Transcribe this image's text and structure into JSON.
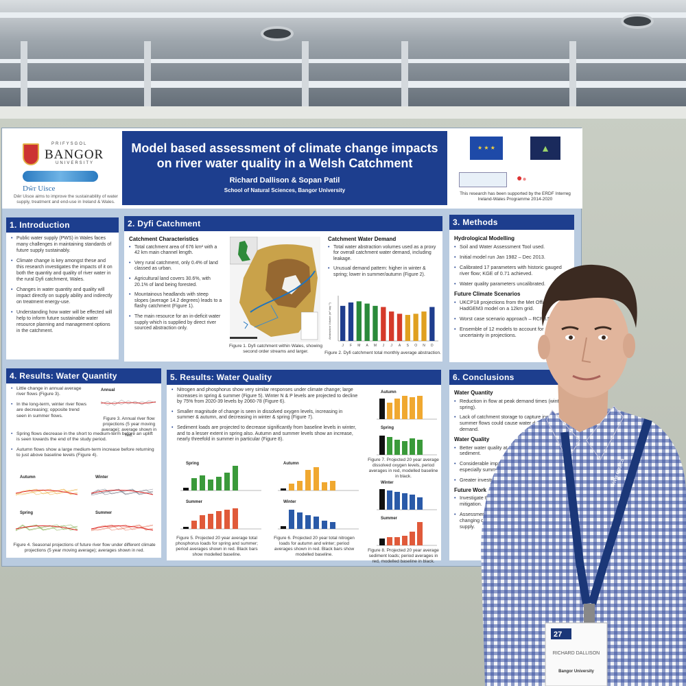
{
  "scene": {
    "background": "#6f7778",
    "wall_color": "#c0c5ba"
  },
  "poster": {
    "logo": {
      "small": "PRIFYSGOL",
      "name": "BANGOR",
      "sub": "UNIVERSITY",
      "dwr": "Dŵr Uisce",
      "tagline": "Dŵr Uisce aims to improve the sustainability of water supply, treatment and end-use in Ireland & Wales."
    },
    "title": "Model based assessment of climate change impacts on river water quality in a Welsh Catchment",
    "authors": "Richard Dallison & Sopan Patil",
    "school": "School of Natural Sciences, Bangor University",
    "funders": {
      "support": "This research has been supported by the ERDF Interreg Ireland-Wales Programme 2014-2020"
    },
    "sections": {
      "intro": {
        "heading": "1. Introduction",
        "bullets": [
          "Public water supply (PWS) in Wales faces many challenges in maintaining standards of future supply sustainably.",
          "Climate change is key amongst these and this research investigates the impacts of it on both the quantity and quality of river water in the rural Dyfi catchment, Wales.",
          "Changes in water quantity and quality will impact directly on supply ability and indirectly on treatment energy-use.",
          "Understanding how water will be effected will help to inform future sustainable water resource planning and management options in the catchment."
        ]
      },
      "catchment": {
        "heading": "2. Dyfi Catchment",
        "char_title": "Catchment Characteristics",
        "bullets": [
          "Total catchment area of 676 km² with a 42 km main channel length.",
          "Very rural catchment, only 0.4% of land classed as urban.",
          "Agricultural land covers 30.6%, with 20.1% of land being forested.",
          "Mountainous headlands with steep slopes (average 14.2 degrees) leads to a flashy catchment (Figure 1).",
          "The main resource for an in-deficit water supply which is supplied by direct river sourced abstraction only."
        ],
        "fig1": "Figure 1. Dyfi catchment within Wales, showing second order streams and larger.",
        "demand_title": "Catchment Water Demand",
        "demand_bullets": [
          "Total water abstraction volumes used as a proxy for overall catchment water demand, including leakage.",
          "Unusual demand pattern: higher in winter & spring; lower in summer/autumn (Figure 2)."
        ],
        "fig2": "Figure 2. Dyfi catchment total monthly average abstraction."
      },
      "methods": {
        "heading": "3. Methods",
        "hydro_title": "Hydrological Modelling",
        "bullets": [
          "Soil and Water Assessment Tool used.",
          "Initial model run Jan 1982 – Dec 2013.",
          "Calibrated 17 parameters with historic gauged river flow; KGE of 0.71 achieved.",
          "Water quality parameters uncalibrated."
        ],
        "future_title": "Future Climate Scenarios",
        "future_bullets": [
          "UKCP18 projections from the Met Office's HadGEM3 model on a 12km grid.",
          "Worst case scenario approach – RCP8.5.",
          "Ensemble of 12 models to account for uncertainty in projections."
        ]
      },
      "quantity": {
        "heading": "4. Results: Water Quantity",
        "bullets": [
          "Little change in annual average river flows (Figure 3).",
          "In the long-term, winter river flows are decreasing; opposite trend seen in summer flows.",
          "Spring flows decrease in the short to medium-term before an uplift is seen towards the end of the study period.",
          "Autumn flows show a large medium-term increase before returning to just above baseline levels (Figure 4)."
        ],
        "annual": "Annual",
        "fig3": "Figure 3. Annual river flow projections (5 year moving average); average shown in red.",
        "seasons": [
          "Autumn",
          "Winter",
          "Spring",
          "Summer"
        ],
        "fig4": "Figure 4. Seasonal projections of future river flow under different climate projections (5 year moving average); averages shown in red."
      },
      "quality": {
        "heading": "5. Results: Water Quality",
        "bullets": [
          "Nitrogen and phosphorus show very similar responses under climate change; large increases in spring & summer (Figure 5). Winter N & P levels are projected to decline by 75% from 2020-39 levels by 2060-78 (Figure 6).",
          "Smaller magnitude of change is seen in dissolved oxygen levels, increasing in summer & autumn, and decreasing in winter & spring (Figure 7).",
          "Sediment loads are projected to decrease significantly from baseline levels in winter, and to a lesser extent in spring also. Autumn and summer levels show an increase, nearly threefold in summer in particular (Figure 8)."
        ],
        "labels": [
          "Spring",
          "Summer",
          "Autumn",
          "Winter"
        ],
        "fig5": "Figure 5. Projected 20 year average total phosphorus loads for spring and summer; period averages shown in red. Black bars show modelled baseline.",
        "fig6": "Figure 6. Projected 20 year total nitrogen loads for autumn and winter; period averages shown in red. Black bars show modelled baseline.",
        "fig7": "Figure 7. Projected 20 year average dissolved oxygen levels, period averages in red, modelled baseline in black.",
        "fig8": "Figure 8. Projected 20 year average sediment loads; period averages in red, modelled baseline in black."
      },
      "conclusions": {
        "heading": "6. Conclusions",
        "qty_title": "Water Quantity",
        "qty_bullets": [
          "Reduction in flow at peak demand times (winter & spring).",
          "Lack of catchment storage to capture increased summer flows could cause water deficit at peak demand."
        ],
        "qual_title": "Water Quality",
        "qual_bullets": [
          "Better water quality at peak demand times, except sediment.",
          "Considerable impact on raw water quality, especially summer.",
          "Greater investment in water quality monitoring."
        ],
        "future_title": "Future Work",
        "future_bullets": [
          "Investigate the economic viability of required mitigation.",
          "Assessment of future network ability to cope with changing demand and impacts on public water supply."
        ]
      }
    }
  },
  "badge": {
    "number": "27",
    "name": "RICHARD DALLISON",
    "org": "Bangor University"
  },
  "chart_data": {
    "type": "bar",
    "title": "Figure 2. Dyfi catchment total monthly average abstraction.",
    "categories": [
      "J",
      "F",
      "M",
      "A",
      "M",
      "J",
      "J",
      "A",
      "S",
      "O",
      "N",
      "D"
    ],
    "values": [
      62,
      68,
      70,
      66,
      62,
      60,
      52,
      48,
      46,
      48,
      52,
      60
    ],
    "colors": [
      "#1f3e8e",
      "#1f3e8e",
      "#2a8a3a",
      "#2a8a3a",
      "#2a8a3a",
      "#d53a2a",
      "#d53a2a",
      "#d53a2a",
      "#e0a020",
      "#e0a020",
      "#e0a020",
      "#1f3e8e"
    ],
    "ylabel": "Abstraction Volume (m³ day⁻¹)",
    "ylim": [
      0,
      80
    ]
  }
}
